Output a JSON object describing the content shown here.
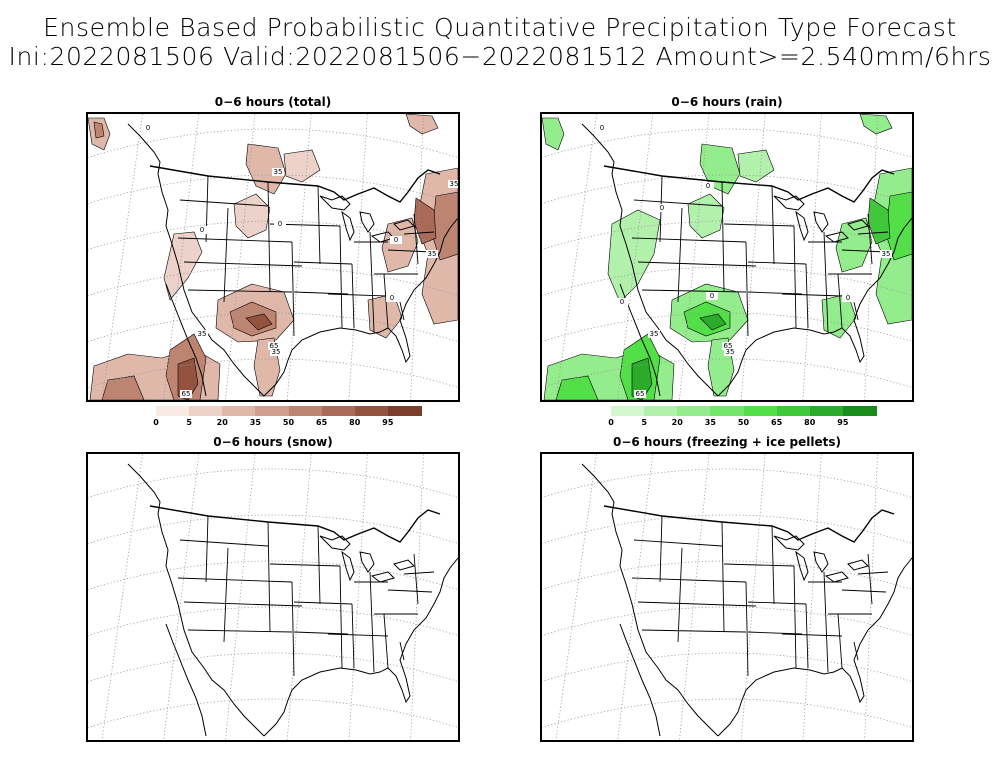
{
  "title_line1": "Ensemble Based Probabilistic Quantitative Precipitation Type Forecast",
  "title_line2": "Ini:2022081506 Valid:2022081506−2022081512 Amount>=2.540mm/6hrs",
  "panels": [
    {
      "title": "0−6 hours (total)",
      "palette": "brown",
      "contour_labels": [
        "0",
        "0",
        "0",
        "0",
        "35",
        "35",
        "35",
        "0",
        "65",
        "35",
        "65",
        "35"
      ]
    },
    {
      "title": "0−6 hours (rain)",
      "palette": "green",
      "contour_labels": [
        "0",
        "0",
        "0",
        "0",
        "0",
        "35",
        "0",
        "65",
        "35",
        "35",
        "65"
      ]
    },
    {
      "title": "0−6 hours (snow)",
      "palette": "none",
      "contour_labels": []
    },
    {
      "title": "0−6 hours (freezing + ice pellets)",
      "palette": "none",
      "contour_labels": []
    }
  ],
  "colorbars": {
    "total": {
      "labels": [
        "0",
        "5",
        "20",
        "35",
        "50",
        "65",
        "80",
        "95"
      ],
      "colors": [
        "#f8ebe6",
        "#ecd2c8",
        "#dfb8aa",
        "#cf9e8e",
        "#bd8472",
        "#a96a58",
        "#93533f",
        "#7a3e2a"
      ]
    },
    "rain": {
      "labels": [
        "0",
        "5",
        "20",
        "35",
        "50",
        "65",
        "80",
        "95"
      ],
      "colors": [
        "#d2f7cf",
        "#b2f1ac",
        "#94ed8c",
        "#74e76b",
        "#52df48",
        "#3ec83a",
        "#2cab2a",
        "#1a8c1c"
      ]
    }
  }
}
